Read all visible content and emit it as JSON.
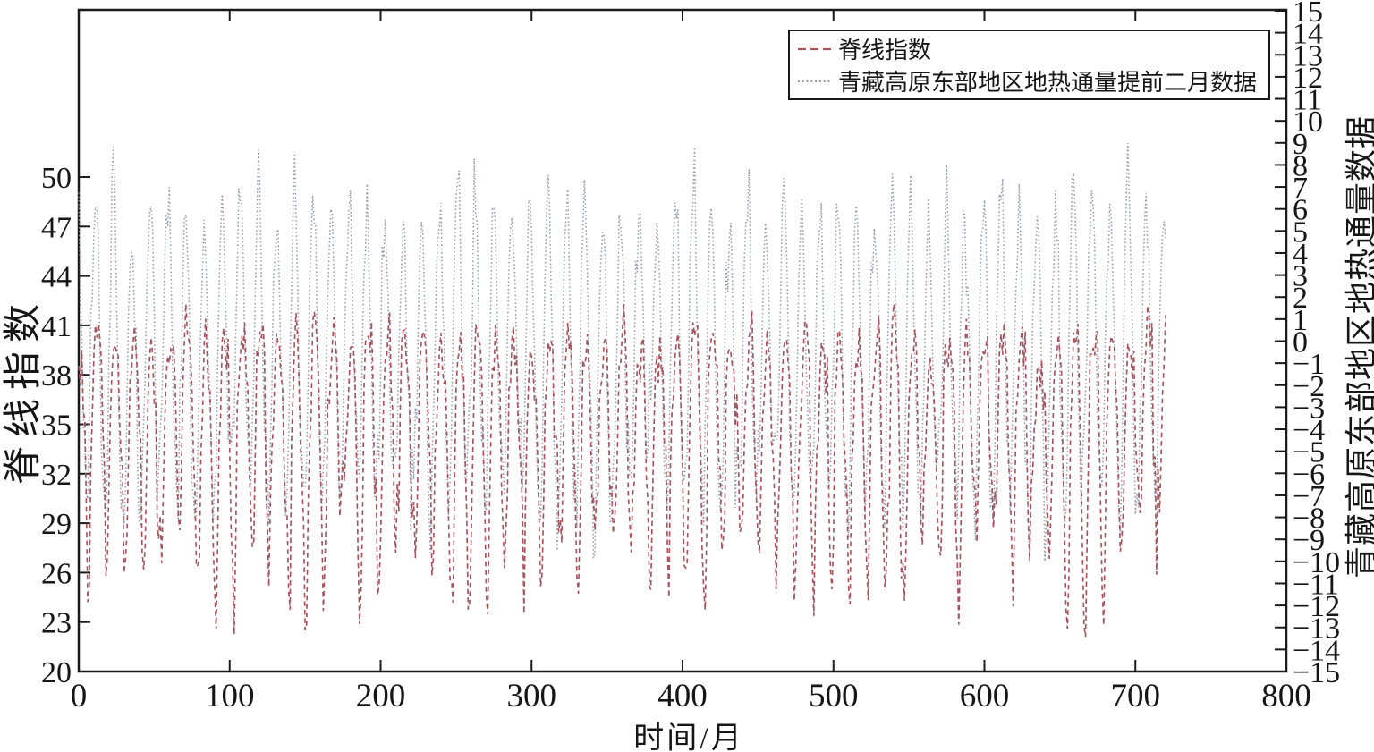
{
  "chart_data": {
    "type": "line",
    "title": "",
    "xlabel": "时间/月",
    "ylabel_left": "脊线指数",
    "ylabel_right": "青藏高原东部地区地热通量数据",
    "x_range": [
      0,
      800
    ],
    "x_ticks": [
      0,
      100,
      200,
      300,
      400,
      500,
      600,
      700,
      800
    ],
    "y_left_range": [
      20,
      50
    ],
    "y_left_ticks": [
      20,
      23,
      26,
      29,
      32,
      35,
      38,
      41,
      44,
      47,
      50
    ],
    "y_right_range": [
      -15,
      15
    ],
    "y_right_ticks": [
      -15,
      -14,
      -13,
      -12,
      -11,
      -10,
      -9,
      -8,
      -7,
      -6,
      -5,
      -4,
      -3,
      -2,
      -1,
      0,
      1,
      2,
      3,
      4,
      5,
      6,
      7,
      8,
      9,
      10,
      11,
      12,
      13,
      14,
      15
    ],
    "grid": false,
    "legend": {
      "position": "top-right",
      "entries": [
        {
          "label": "脊线指数",
          "style": "dashed",
          "color": "#a6545d"
        },
        {
          "label": "青藏高原东部地区地热通量提前二月数据",
          "style": "dotted",
          "color": "#8d94aa"
        }
      ]
    },
    "series": [
      {
        "name": "脊线指数",
        "axis": "left",
        "line_style": "dashed",
        "color": "#a6545d",
        "months": 721,
        "period_months": 12,
        "start_month_index": 6,
        "monthly_climatology": [
          27.0,
          26.5,
          29.5,
          35.0,
          38.0,
          39.3,
          40.0,
          39.8,
          39.2,
          37.5,
          33.5,
          30.0
        ],
        "monthly_sd": [
          2.2,
          2.1,
          2.1,
          1.8,
          1.4,
          1.2,
          1.1,
          1.1,
          1.2,
          1.5,
          2.0,
          2.2
        ],
        "noise_ar1": 0.3,
        "observed_range": [
          21.5,
          42.3
        ],
        "seed": 1311
      },
      {
        "name": "青藏高原东部地区地热通量提前二月数据",
        "axis": "right",
        "line_style": "dotted",
        "color": "#8d94aa",
        "months": 721,
        "period_months": 12,
        "start_month_index": 6,
        "monthly_climatology": [
          -6.5,
          -4.5,
          -1.0,
          2.5,
          4.8,
          6.1,
          5.3,
          2.8,
          -0.5,
          -3.8,
          -5.8,
          -6.8
        ],
        "monthly_sd": [
          1.5,
          1.3,
          1.1,
          1.0,
          1.1,
          1.2,
          1.2,
          1.1,
          1.0,
          1.1,
          1.3,
          1.5
        ],
        "noise_ar1": 0.3,
        "observed_range": [
          -10.0,
          9.0
        ],
        "seed": 77
      }
    ]
  }
}
